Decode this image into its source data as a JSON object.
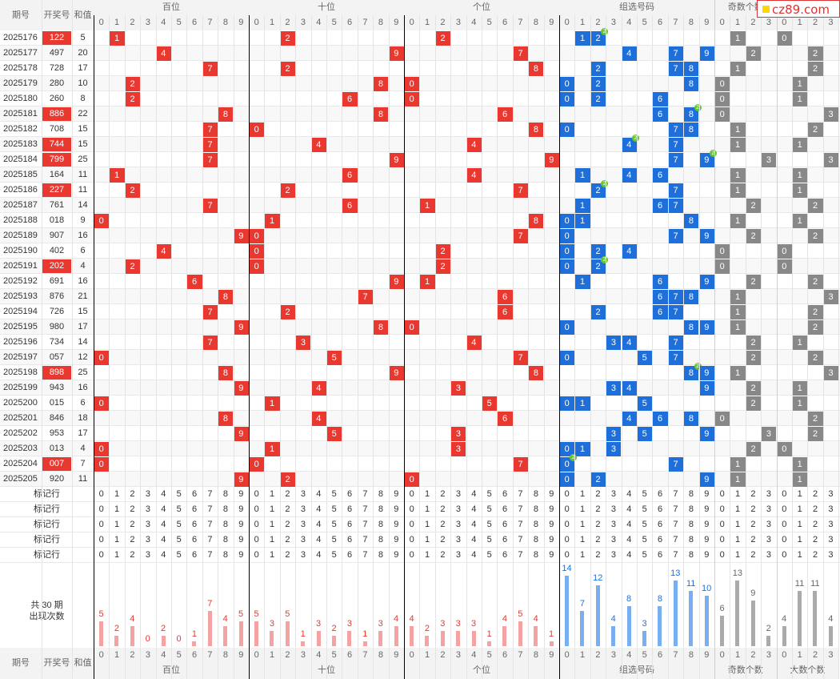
{
  "header": {
    "period": "期号",
    "draw": "开奖号",
    "sum": "和值",
    "groups": [
      "百位",
      "十位",
      "个位",
      "组选号码",
      "奇数个数",
      "大数个数"
    ]
  },
  "logo": {
    "text": "cz89.com"
  },
  "digits10": [
    "0",
    "1",
    "2",
    "3",
    "4",
    "5",
    "6",
    "7",
    "8",
    "9"
  ],
  "digits4": [
    "0",
    "1",
    "2",
    "3"
  ],
  "rows": [
    {
      "p": "2025176",
      "n": "122",
      "s": "5",
      "h": true
    },
    {
      "p": "2025177",
      "n": "497",
      "s": "20",
      "h": false
    },
    {
      "p": "2025178",
      "n": "728",
      "s": "17",
      "h": false
    },
    {
      "p": "2025179",
      "n": "280",
      "s": "10",
      "h": false
    },
    {
      "p": "2025180",
      "n": "260",
      "s": "8",
      "h": false
    },
    {
      "p": "2025181",
      "n": "886",
      "s": "22",
      "h": true
    },
    {
      "p": "2025182",
      "n": "708",
      "s": "15",
      "h": false
    },
    {
      "p": "2025183",
      "n": "744",
      "s": "15",
      "h": true
    },
    {
      "p": "2025184",
      "n": "799",
      "s": "25",
      "h": true
    },
    {
      "p": "2025185",
      "n": "164",
      "s": "11",
      "h": false
    },
    {
      "p": "2025186",
      "n": "227",
      "s": "11",
      "h": true
    },
    {
      "p": "2025187",
      "n": "761",
      "s": "14",
      "h": false
    },
    {
      "p": "2025188",
      "n": "018",
      "s": "9",
      "h": false
    },
    {
      "p": "2025189",
      "n": "907",
      "s": "16",
      "h": false
    },
    {
      "p": "2025190",
      "n": "402",
      "s": "6",
      "h": false
    },
    {
      "p": "2025191",
      "n": "202",
      "s": "4",
      "h": true
    },
    {
      "p": "2025192",
      "n": "691",
      "s": "16",
      "h": false
    },
    {
      "p": "2025193",
      "n": "876",
      "s": "21",
      "h": false
    },
    {
      "p": "2025194",
      "n": "726",
      "s": "15",
      "h": false
    },
    {
      "p": "2025195",
      "n": "980",
      "s": "17",
      "h": false
    },
    {
      "p": "2025196",
      "n": "734",
      "s": "14",
      "h": false
    },
    {
      "p": "2025197",
      "n": "057",
      "s": "12",
      "h": false
    },
    {
      "p": "2025198",
      "n": "898",
      "s": "25",
      "h": true
    },
    {
      "p": "2025199",
      "n": "943",
      "s": "16",
      "h": false
    },
    {
      "p": "2025200",
      "n": "015",
      "s": "6",
      "h": false
    },
    {
      "p": "2025201",
      "n": "846",
      "s": "18",
      "h": false
    },
    {
      "p": "2025202",
      "n": "953",
      "s": "17",
      "h": false
    },
    {
      "p": "2025203",
      "n": "013",
      "s": "4",
      "h": false
    },
    {
      "p": "2025204",
      "n": "007",
      "s": "7",
      "h": true
    },
    {
      "p": "2025205",
      "n": "920",
      "s": "11",
      "h": false
    }
  ],
  "marker_label": "标记行",
  "summary": {
    "line1": "共 30 期",
    "line2": "出现次数"
  },
  "counts": {
    "bai": [
      5,
      2,
      4,
      0,
      2,
      0,
      1,
      7,
      4,
      5
    ],
    "shi": [
      5,
      3,
      5,
      1,
      3,
      2,
      3,
      1,
      3,
      4
    ],
    "ge": [
      4,
      2,
      3,
      3,
      3,
      1,
      4,
      5,
      4,
      1
    ],
    "zu": [
      14,
      7,
      12,
      4,
      8,
      3,
      8,
      13,
      11,
      10
    ],
    "odd": [
      6,
      13,
      9,
      2
    ],
    "big": [
      4,
      11,
      11,
      4
    ]
  },
  "colors": {
    "red": "#e8382f",
    "blue": "#1e6fd9",
    "gray": "#888888",
    "pinkbar": "#f4a3a3",
    "bluebar": "#79aef0",
    "graybar": "#aaaaaa"
  }
}
